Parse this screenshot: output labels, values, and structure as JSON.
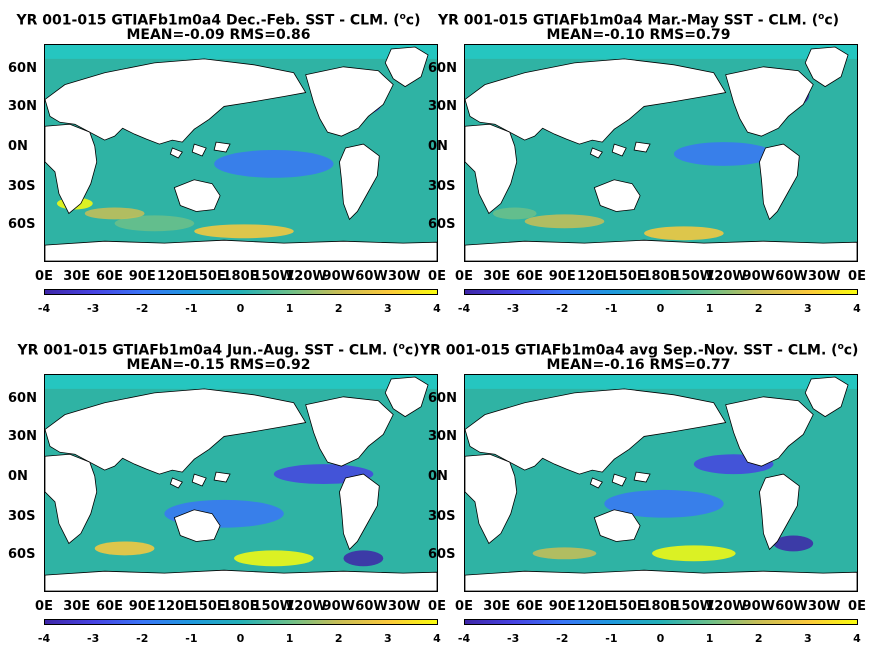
{
  "panels": [
    {
      "title_line1": "YR 001-015 GTIAFb1m0a4  Dec.-Feb. SST - CLM. (",
      "unit_sup": "o",
      "unit_tail": "c)",
      "title_line2": "MEAN=-0.09   RMS=0.86"
    },
    {
      "title_line1": "YR 001-015 GTIAFb1m0a4 Mar.-May SST - CLM. (",
      "unit_sup": "o",
      "unit_tail": "c)",
      "title_line2": "MEAN=-0.10   RMS=0.79"
    },
    {
      "title_line1": "YR 001-015 GTIAFb1m0a4 Jun.-Aug. SST - CLM. (",
      "unit_sup": "o",
      "unit_tail": "c)",
      "title_line2": "MEAN=-0.15   RMS=0.92"
    },
    {
      "title_line1": "YR 001-015 GTIAFb1m0a4 avg Sep.-Nov. SST - CLM. (",
      "unit_sup": "o",
      "unit_tail": "c)",
      "title_line2": "MEAN=-0.16   RMS=0.77"
    }
  ],
  "lat_labels": [
    "60N",
    "30N",
    "0N",
    "30S",
    "60S"
  ],
  "lon_labels": [
    "0E",
    "30E",
    "60E",
    "90E",
    "120E",
    "150E",
    "180E",
    "150W",
    "120W",
    "90W",
    "60W",
    "30W",
    "0E"
  ],
  "colorbar_ticks": [
    "-4",
    "-3",
    "-2",
    "-1",
    "0",
    "1",
    "2",
    "3",
    "4"
  ],
  "colorbar_colors": [
    "#3e26a8",
    "#4743e2",
    "#3a76f7",
    "#1f99dd",
    "#25b1b7",
    "#6cc08a",
    "#c8be56",
    "#fbc93c",
    "#f9fb0e"
  ]
}
